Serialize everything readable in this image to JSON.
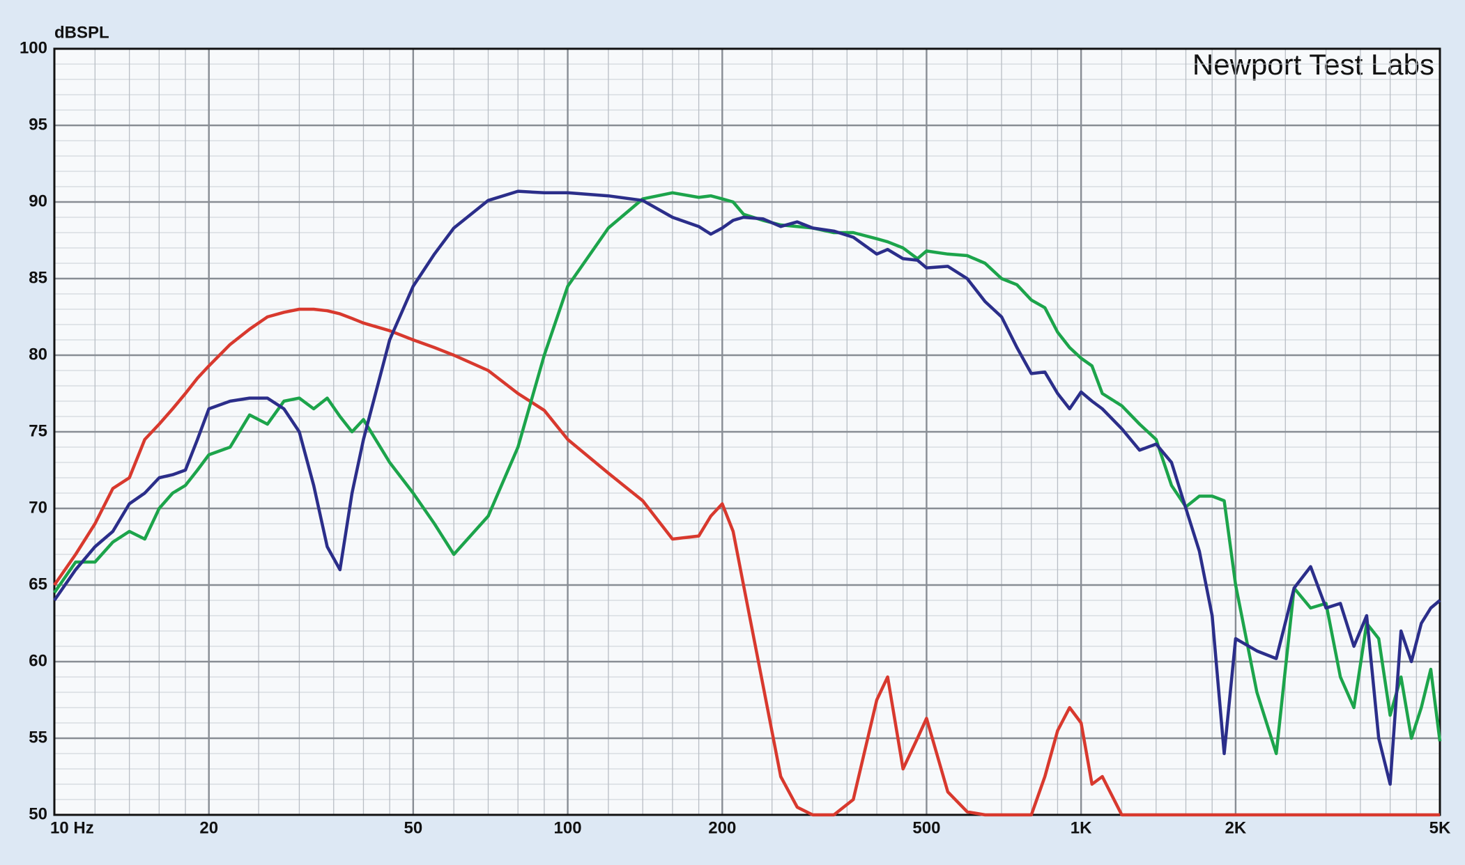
{
  "chart_data": {
    "type": "line",
    "ylabel": "dBSPL",
    "annotation": "Newport Test Labs",
    "xscale": "log",
    "grid": true,
    "xlim": [
      10,
      5000
    ],
    "ylim": [
      50,
      100
    ],
    "xticks": [
      {
        "value": 10,
        "label": "10  Hz"
      },
      20,
      50,
      100,
      200,
      500,
      {
        "value": 1000,
        "label": "1K"
      },
      {
        "value": 2000,
        "label": "2K"
      },
      {
        "value": 5000,
        "label": "5K"
      }
    ],
    "minor_xticks": [
      30,
      40,
      60,
      70,
      80,
      90,
      300,
      400,
      600,
      700,
      800,
      900,
      3000,
      4000,
      12,
      14,
      16,
      18,
      25,
      35,
      45,
      120,
      140,
      160,
      180,
      250,
      350,
      450,
      1200,
      1400,
      1600,
      1800,
      2500,
      3500,
      4500
    ],
    "yticks": [
      50,
      55,
      60,
      65,
      70,
      75,
      80,
      85,
      90,
      95,
      100
    ],
    "minor_yticks": [
      51,
      52,
      53,
      54,
      56,
      57,
      58,
      59,
      61,
      62,
      63,
      64,
      66,
      67,
      68,
      69,
      71,
      72,
      73,
      74,
      76,
      77,
      78,
      79,
      81,
      82,
      83,
      84,
      86,
      87,
      88,
      89,
      91,
      92,
      93,
      94,
      96,
      97,
      98,
      99
    ],
    "x": [
      10,
      11,
      12,
      13,
      14,
      15,
      16,
      17,
      18,
      19,
      20,
      22,
      24,
      26,
      28,
      30,
      32,
      34,
      36,
      38,
      40,
      45,
      50,
      55,
      60,
      70,
      80,
      90,
      100,
      120,
      140,
      160,
      180,
      190,
      200,
      210,
      220,
      240,
      260,
      280,
      300,
      330,
      360,
      400,
      420,
      450,
      480,
      500,
      550,
      600,
      650,
      700,
      750,
      800,
      850,
      900,
      950,
      1000,
      1050,
      1100,
      1200,
      1300,
      1400,
      1500,
      1600,
      1700,
      1800,
      1900,
      2000,
      2200,
      2400,
      2600,
      2800,
      3000,
      3200,
      3400,
      3600,
      3800,
      4000,
      4200,
      4400,
      4600,
      4800,
      5000
    ],
    "series": [
      {
        "color": "#d8392e",
        "values": [
          65,
          67,
          69,
          71.3,
          72,
          74.5,
          75.5,
          76.5,
          77.5,
          78.5,
          79.3,
          80.7,
          81.7,
          82.5,
          82.8,
          83,
          83,
          82.9,
          82.7,
          82.4,
          82.1,
          81.6,
          81,
          80.5,
          80,
          79,
          77.5,
          76.4,
          74.5,
          72.3,
          70.5,
          68,
          68.2,
          69.5,
          70.3,
          68.5,
          65,
          58.5,
          52.5,
          50.5,
          50,
          50,
          51,
          57.5,
          59,
          53,
          55,
          56.3,
          51.5,
          50.2,
          50,
          50,
          50,
          50,
          52.5,
          55.5,
          57,
          56,
          52,
          52.5,
          50,
          50,
          50,
          50,
          50,
          50,
          50,
          50,
          50,
          50,
          50,
          50,
          50,
          50,
          50,
          50,
          50,
          50,
          50,
          50,
          50,
          50,
          50,
          50
        ]
      },
      {
        "color": "#1ca44b",
        "values": [
          64.5,
          66.5,
          66.5,
          67.8,
          68.5,
          68,
          70,
          71,
          71.5,
          72.5,
          73.5,
          74,
          76.1,
          75.5,
          77,
          77.2,
          76.5,
          77.2,
          76,
          75,
          75.8,
          73,
          71,
          69,
          67,
          69.5,
          74,
          80,
          84.5,
          88.3,
          90.2,
          90.6,
          90.3,
          90.4,
          90.2,
          90,
          89.2,
          88.8,
          88.5,
          88.4,
          88.3,
          88,
          88,
          87.6,
          87.4,
          87,
          86.3,
          86.8,
          86.6,
          86.5,
          86,
          85,
          84.6,
          83.6,
          83.1,
          81.5,
          80.5,
          79.8,
          79.3,
          77.5,
          76.7,
          75.5,
          74.5,
          71.5,
          70.1,
          70.8,
          70.8,
          70.5,
          65,
          58,
          54,
          64.8,
          63.5,
          63.8,
          59,
          57,
          62.5,
          61.5,
          56.5,
          59,
          55,
          57,
          59.5,
          54.8
        ]
      },
      {
        "color": "#2b2e8a",
        "values": [
          64,
          66,
          67.5,
          68.5,
          70.3,
          71,
          72,
          72.2,
          72.5,
          74.5,
          76.5,
          77,
          77.2,
          77.2,
          76.5,
          75,
          71.5,
          67.5,
          66,
          71,
          74.5,
          81,
          84.5,
          86.6,
          88.3,
          90.1,
          90.7,
          90.6,
          90.6,
          90.4,
          90.1,
          89,
          88.4,
          87.9,
          88.3,
          88.8,
          89,
          88.9,
          88.4,
          88.7,
          88.3,
          88.1,
          87.7,
          86.6,
          86.9,
          86.3,
          86.2,
          85.7,
          85.8,
          85,
          83.5,
          82.5,
          80.5,
          78.8,
          78.9,
          77.5,
          76.5,
          77.6,
          77,
          76.5,
          75.2,
          73.8,
          74.2,
          73,
          70,
          67.2,
          63,
          54,
          61.5,
          60.7,
          60.2,
          64.8,
          66.2,
          63.5,
          63.8,
          61,
          63,
          55,
          52,
          62,
          60,
          62.5,
          63.5,
          64
        ]
      }
    ]
  }
}
